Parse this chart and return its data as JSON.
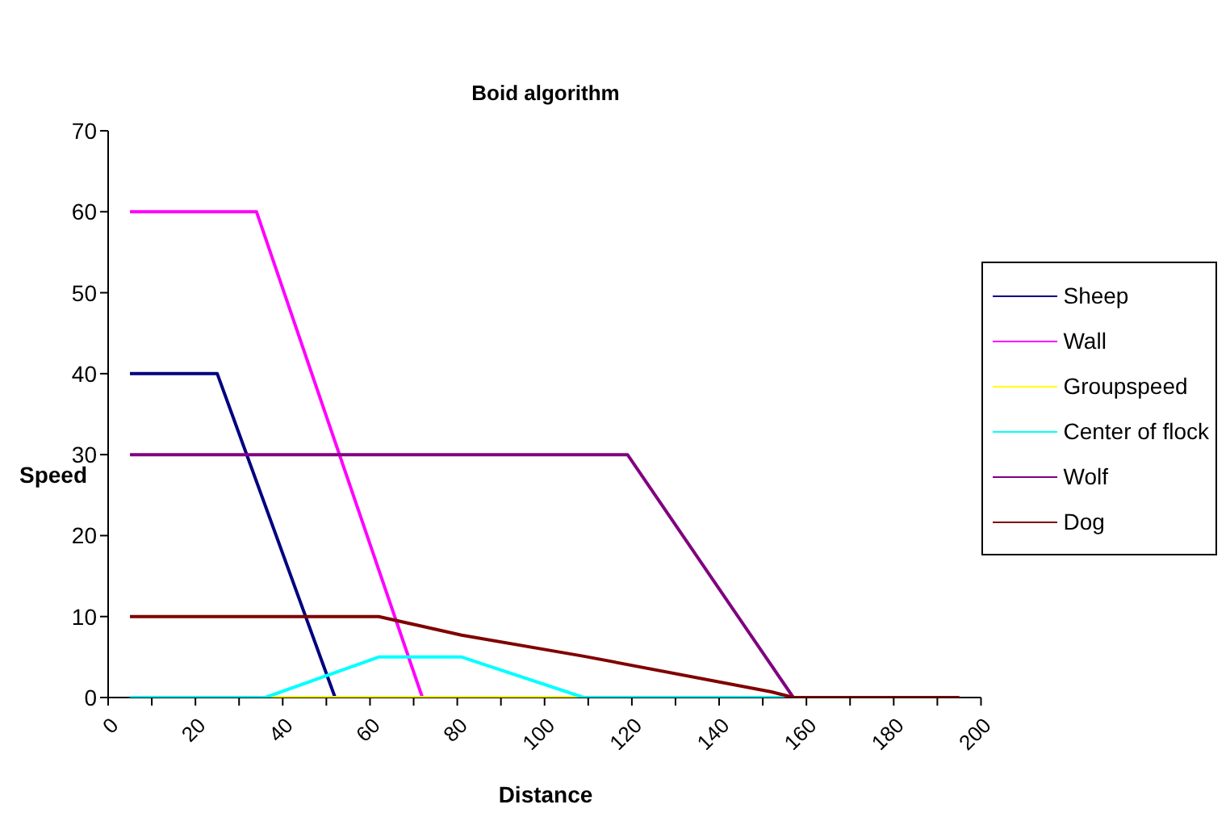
{
  "chart_data": {
    "type": "line",
    "title": "Boid algorithm",
    "xlabel": "Distance",
    "ylabel": "Speed",
    "xlim": [
      0,
      200
    ],
    "xticks": [
      0,
      {
        "value": 10,
        "label": null
      },
      20,
      {
        "value": 30,
        "label": null
      },
      40,
      {
        "value": 50,
        "label": null
      },
      60,
      {
        "value": 70,
        "label": null
      },
      80,
      {
        "value": 90,
        "label": null
      },
      100,
      {
        "value": 110,
        "label": null
      },
      120,
      {
        "value": 130,
        "label": null
      },
      140,
      {
        "value": 150,
        "label": null
      },
      160,
      {
        "value": 170,
        "label": null
      },
      180,
      {
        "value": 190,
        "label": null
      },
      200
    ],
    "ylim": [
      0,
      70
    ],
    "yticks": [
      0,
      10,
      20,
      30,
      40,
      50,
      60,
      70
    ],
    "grid": false,
    "legend": "right",
    "marker": "none",
    "line_style": "solid",
    "series": [
      {
        "name": "Sheep",
        "color": "#000080",
        "x": [
          5,
          25,
          52
        ],
        "values": [
          40,
          40,
          0
        ]
      },
      {
        "name": "Wall",
        "color": "#ff00ff",
        "x": [
          5,
          34,
          72,
          195
        ],
        "values": [
          60,
          60,
          0,
          0
        ]
      },
      {
        "name": "Groupspeed",
        "color": "#ffff00",
        "x": [
          21,
          109
        ],
        "values": [
          0,
          0
        ]
      },
      {
        "name": "Center of flock",
        "color": "#00ffff",
        "x": [
          5,
          36,
          62,
          81,
          109,
          155
        ],
        "values": [
          0,
          0,
          5,
          5,
          0,
          0
        ]
      },
      {
        "name": "Wolf",
        "color": "#800080",
        "x": [
          5,
          119,
          157,
          195
        ],
        "values": [
          30,
          30,
          0,
          0
        ]
      },
      {
        "name": "Dog",
        "color": "#800000",
        "x": [
          5,
          62,
          81,
          109,
          152,
          157,
          195
        ],
        "values": [
          10,
          10,
          7.7,
          5.1,
          0.7,
          0,
          0
        ]
      }
    ]
  }
}
